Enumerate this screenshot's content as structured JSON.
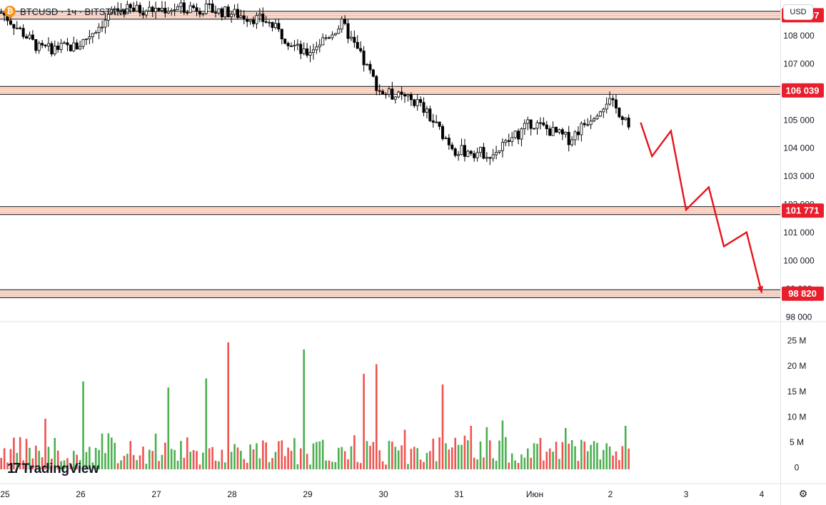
{
  "header": {
    "coin_glyph": "₿",
    "symbol_line": "BTCUSD · 1ч · BITSTAMP"
  },
  "currency_button": "USD",
  "logo": {
    "mark": "17",
    "text": "TradingView"
  },
  "settings_icon": "gear-icon",
  "colors": {
    "up": "#26a69a",
    "down": "#ef5350",
    "candle": "#000000",
    "vol_up": "#4caf50",
    "vol_down": "#ef5350",
    "level_fill": "#fde7dd",
    "level_line": "#f4a58a",
    "level_border": "#000000",
    "label_bg": "#e91e2c",
    "arrow": "#e5141b"
  },
  "chart_data": [
    {
      "type": "candlestick",
      "x_axis": {
        "labels": [
          "25",
          "26",
          "27",
          "28",
          "29",
          "30",
          "31",
          "Июн",
          "2",
          "3",
          "4"
        ]
      },
      "y_axis": {
        "labels": [
          "108 000",
          "107 000",
          "106 000",
          "105 000",
          "104 000",
          "103 000",
          "102 000",
          "101 000",
          "100 000",
          "99 000",
          "98 000"
        ],
        "values": [
          108000,
          107000,
          106000,
          105000,
          104000,
          103000,
          102000,
          101000,
          100000,
          99000,
          98000
        ],
        "range": [
          97850,
          109250
        ]
      },
      "price_series": {
        "day_points": [
          25.0,
          25.5,
          26.0,
          26.5,
          27.0,
          27.5,
          28.0,
          28.5,
          29.0,
          29.5,
          30.0,
          30.5,
          31.0,
          31.5,
          32.0,
          32.5,
          33.0,
          33.3
        ],
        "prices": [
          108800,
          107500,
          107600,
          108900,
          108900,
          109000,
          108800,
          108500,
          107300,
          108400,
          106000,
          105600,
          103900,
          103800,
          104900,
          104300,
          105700,
          104900
        ]
      },
      "levels": [
        {
          "value": 108707,
          "label": "108 707"
        },
        {
          "value": 106039,
          "label": "106 039"
        },
        {
          "value": 101771,
          "label": "101 771"
        },
        {
          "value": 98820,
          "label": "98 820"
        }
      ],
      "forecast_path": {
        "days": [
          33.4,
          33.55,
          33.8,
          34.0,
          34.3,
          34.5,
          34.8,
          35.0
        ],
        "prices": [
          104900,
          103700,
          104600,
          101800,
          102600,
          100500,
          101000,
          98850
        ]
      }
    },
    {
      "type": "bar",
      "name": "volume",
      "y_axis": {
        "labels": [
          "25 M",
          "20 M",
          "15 M",
          "10 M",
          "5 M",
          "0"
        ],
        "values": [
          25,
          20,
          15,
          10,
          5,
          0
        ],
        "unit": "M"
      },
      "spikes": [
        {
          "day": 26.05,
          "value": 16.9
        },
        {
          "day": 27.15,
          "value": 15.7
        },
        {
          "day": 27.65,
          "value": 17.5
        },
        {
          "day": 27.95,
          "value": 24.6
        },
        {
          "day": 28.95,
          "value": 23.2
        },
        {
          "day": 29.75,
          "value": 18.4
        },
        {
          "day": 29.9,
          "value": 20.3
        },
        {
          "day": 30.8,
          "value": 16.3
        }
      ],
      "baseline_range": [
        0.5,
        6.0
      ]
    }
  ]
}
